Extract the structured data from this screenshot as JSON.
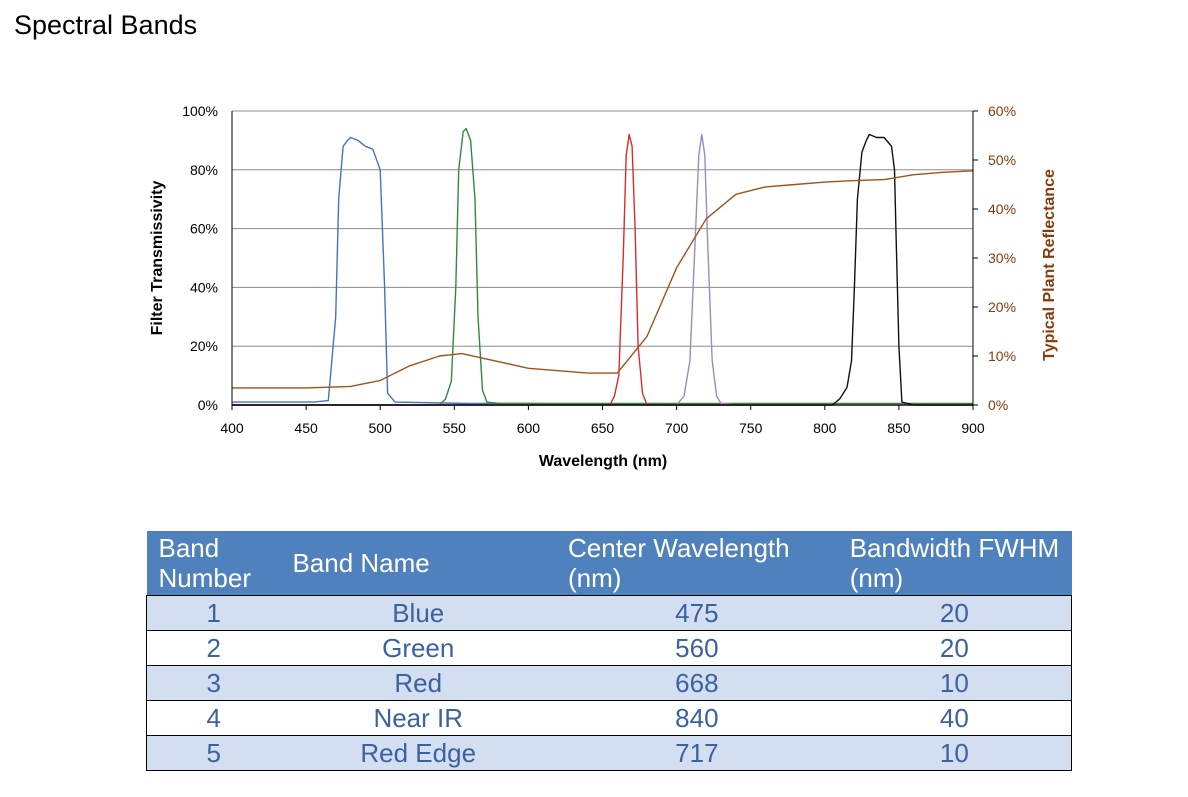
{
  "page": {
    "title": "Spectral Bands"
  },
  "chart_data": {
    "type": "line",
    "xlabel": "Wavelength (nm)",
    "ylabel": "Filter Transmissivity",
    "ylabel_right": "Typical Plant Reflectance",
    "xlim": [
      400,
      900
    ],
    "ylim": [
      0,
      100
    ],
    "ylim_right": [
      0,
      60
    ],
    "x_ticks": [
      "400",
      "450",
      "500",
      "550",
      "600",
      "650",
      "700",
      "750",
      "800",
      "850",
      "900"
    ],
    "y_ticks": [
      "0%",
      "20%",
      "40%",
      "60%",
      "80%",
      "100%"
    ],
    "y_ticks_right": [
      "0%",
      "10%",
      "20%",
      "30%",
      "40%",
      "50%",
      "60%"
    ],
    "grid": true,
    "colors": {
      "right_axis": "#843c0c"
    },
    "series": [
      {
        "color": "#4472c4",
        "axis": "left",
        "x": [
          400,
          455,
          465,
          470,
          472,
          475,
          478,
          480,
          485,
          490,
          495,
          500,
          503,
          505,
          510,
          560,
          600,
          700,
          900
        ],
        "y": [
          1,
          1,
          1.5,
          30,
          70,
          88,
          90,
          91,
          90,
          88,
          87,
          80,
          40,
          4,
          1,
          0.5,
          0.5,
          0,
          0
        ]
      },
      {
        "color": "#2e8b3a",
        "axis": "left",
        "x": [
          400,
          540,
          544,
          548,
          551,
          553,
          556,
          558,
          561,
          564,
          566,
          569,
          572,
          580,
          700,
          900
        ],
        "y": [
          0,
          0,
          2,
          8,
          40,
          80,
          93,
          94,
          90,
          70,
          30,
          5,
          1,
          0.5,
          0.5,
          0.5
        ]
      },
      {
        "color": "#d92b2b",
        "axis": "left",
        "x": [
          400,
          655,
          658,
          661,
          664,
          666,
          668,
          670,
          672,
          674,
          677,
          680,
          690,
          900
        ],
        "y": [
          0,
          0,
          3,
          10,
          50,
          85,
          92,
          88,
          60,
          20,
          4,
          0,
          0,
          0
        ]
      },
      {
        "color": "#9c8ac0",
        "axis": "left",
        "x": [
          400,
          700,
          705,
          709,
          712,
          715,
          717,
          719,
          721,
          724,
          727,
          730,
          740,
          900
        ],
        "y": [
          0,
          0,
          3,
          15,
          50,
          85,
          92,
          85,
          55,
          15,
          3,
          0.5,
          0,
          0
        ]
      },
      {
        "color": "#111111",
        "axis": "left",
        "x": [
          400,
          805,
          810,
          815,
          818,
          820,
          822,
          825,
          828,
          830,
          835,
          840,
          845,
          847,
          848,
          850,
          852,
          860,
          900
        ],
        "y": [
          0,
          0,
          2,
          6,
          15,
          40,
          70,
          86,
          90,
          92,
          91,
          91,
          88,
          80,
          60,
          20,
          1,
          0,
          0
        ]
      },
      {
        "color": "#a0521b",
        "axis": "right",
        "x": [
          400,
          450,
          480,
          500,
          520,
          540,
          555,
          570,
          600,
          640,
          660,
          680,
          700,
          720,
          740,
          760,
          780,
          800,
          820,
          840,
          860,
          880,
          900
        ],
        "y": [
          3.5,
          3.5,
          3.8,
          5,
          8,
          10,
          10.5,
          9.5,
          7.5,
          6.5,
          6.5,
          14,
          28,
          38,
          43,
          44.5,
          45,
          45.5,
          45.8,
          46,
          47,
          47.5,
          47.8
        ]
      }
    ]
  },
  "table": {
    "headers": [
      "Band Number",
      "Band Name",
      "Center Wavelength (nm)",
      "Bandwidth FWHM (nm)"
    ],
    "rows": [
      [
        "1",
        "Blue",
        "475",
        "20"
      ],
      [
        "2",
        "Green",
        "560",
        "20"
      ],
      [
        "3",
        "Red",
        "668",
        "10"
      ],
      [
        "4",
        "Near IR",
        "840",
        "40"
      ],
      [
        "5",
        "Red Edge",
        "717",
        "10"
      ]
    ]
  }
}
